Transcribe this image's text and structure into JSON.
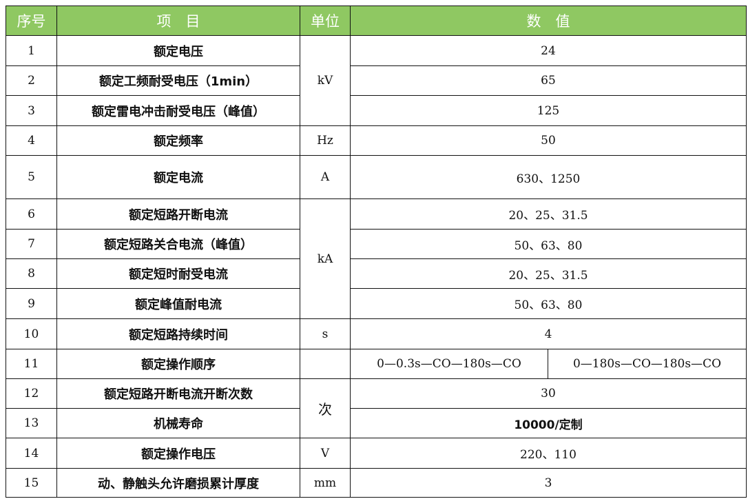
{
  "header": {
    "no": "序号",
    "item": "项　目",
    "unit": "单位",
    "value": "数　值"
  },
  "header_color": "#8fc862",
  "rows": [
    {
      "no": "1",
      "item": "额定电压",
      "unit": "kV",
      "value": "24"
    },
    {
      "no": "2",
      "item": "额定工频耐受电压（1min）",
      "value": "65"
    },
    {
      "no": "3",
      "item": "额定雷电冲击耐受电压（峰值）",
      "value": "125"
    },
    {
      "no": "4",
      "item": "额定频率",
      "unit": "Hz",
      "value": "50"
    },
    {
      "no": "5",
      "item": "额定电流",
      "unit": "A",
      "value": "630、1250"
    },
    {
      "no": "6",
      "item": "额定短路开断电流",
      "unit": "kA",
      "value": "20、25、31.5"
    },
    {
      "no": "7",
      "item": "额定短路关合电流（峰值）",
      "value": "50、63、80"
    },
    {
      "no": "8",
      "item": "额定短时耐受电流",
      "value": "20、25、31.5"
    },
    {
      "no": "9",
      "item": "额定峰值耐电流",
      "value": "50、63、80"
    },
    {
      "no": "10",
      "item": "额定短路持续时间",
      "unit": "s",
      "value": "4"
    },
    {
      "no": "11",
      "item": "额定操作顺序",
      "unit": "",
      "value": "0—0.3s—CO—180s—CO",
      "value2": "0—180s—CO—180s—CO"
    },
    {
      "no": "12",
      "item": "额定短路开断电流开断次数",
      "unit": "次",
      "value": "30"
    },
    {
      "no": "13",
      "item": "机械寿命",
      "value": "10000/定制"
    },
    {
      "no": "14",
      "item": "额定操作电压",
      "unit": "V",
      "value": "220、110"
    },
    {
      "no": "15",
      "item": "动、静触头允许磨损累计厚度",
      "unit": "mm",
      "value": "3"
    }
  ]
}
